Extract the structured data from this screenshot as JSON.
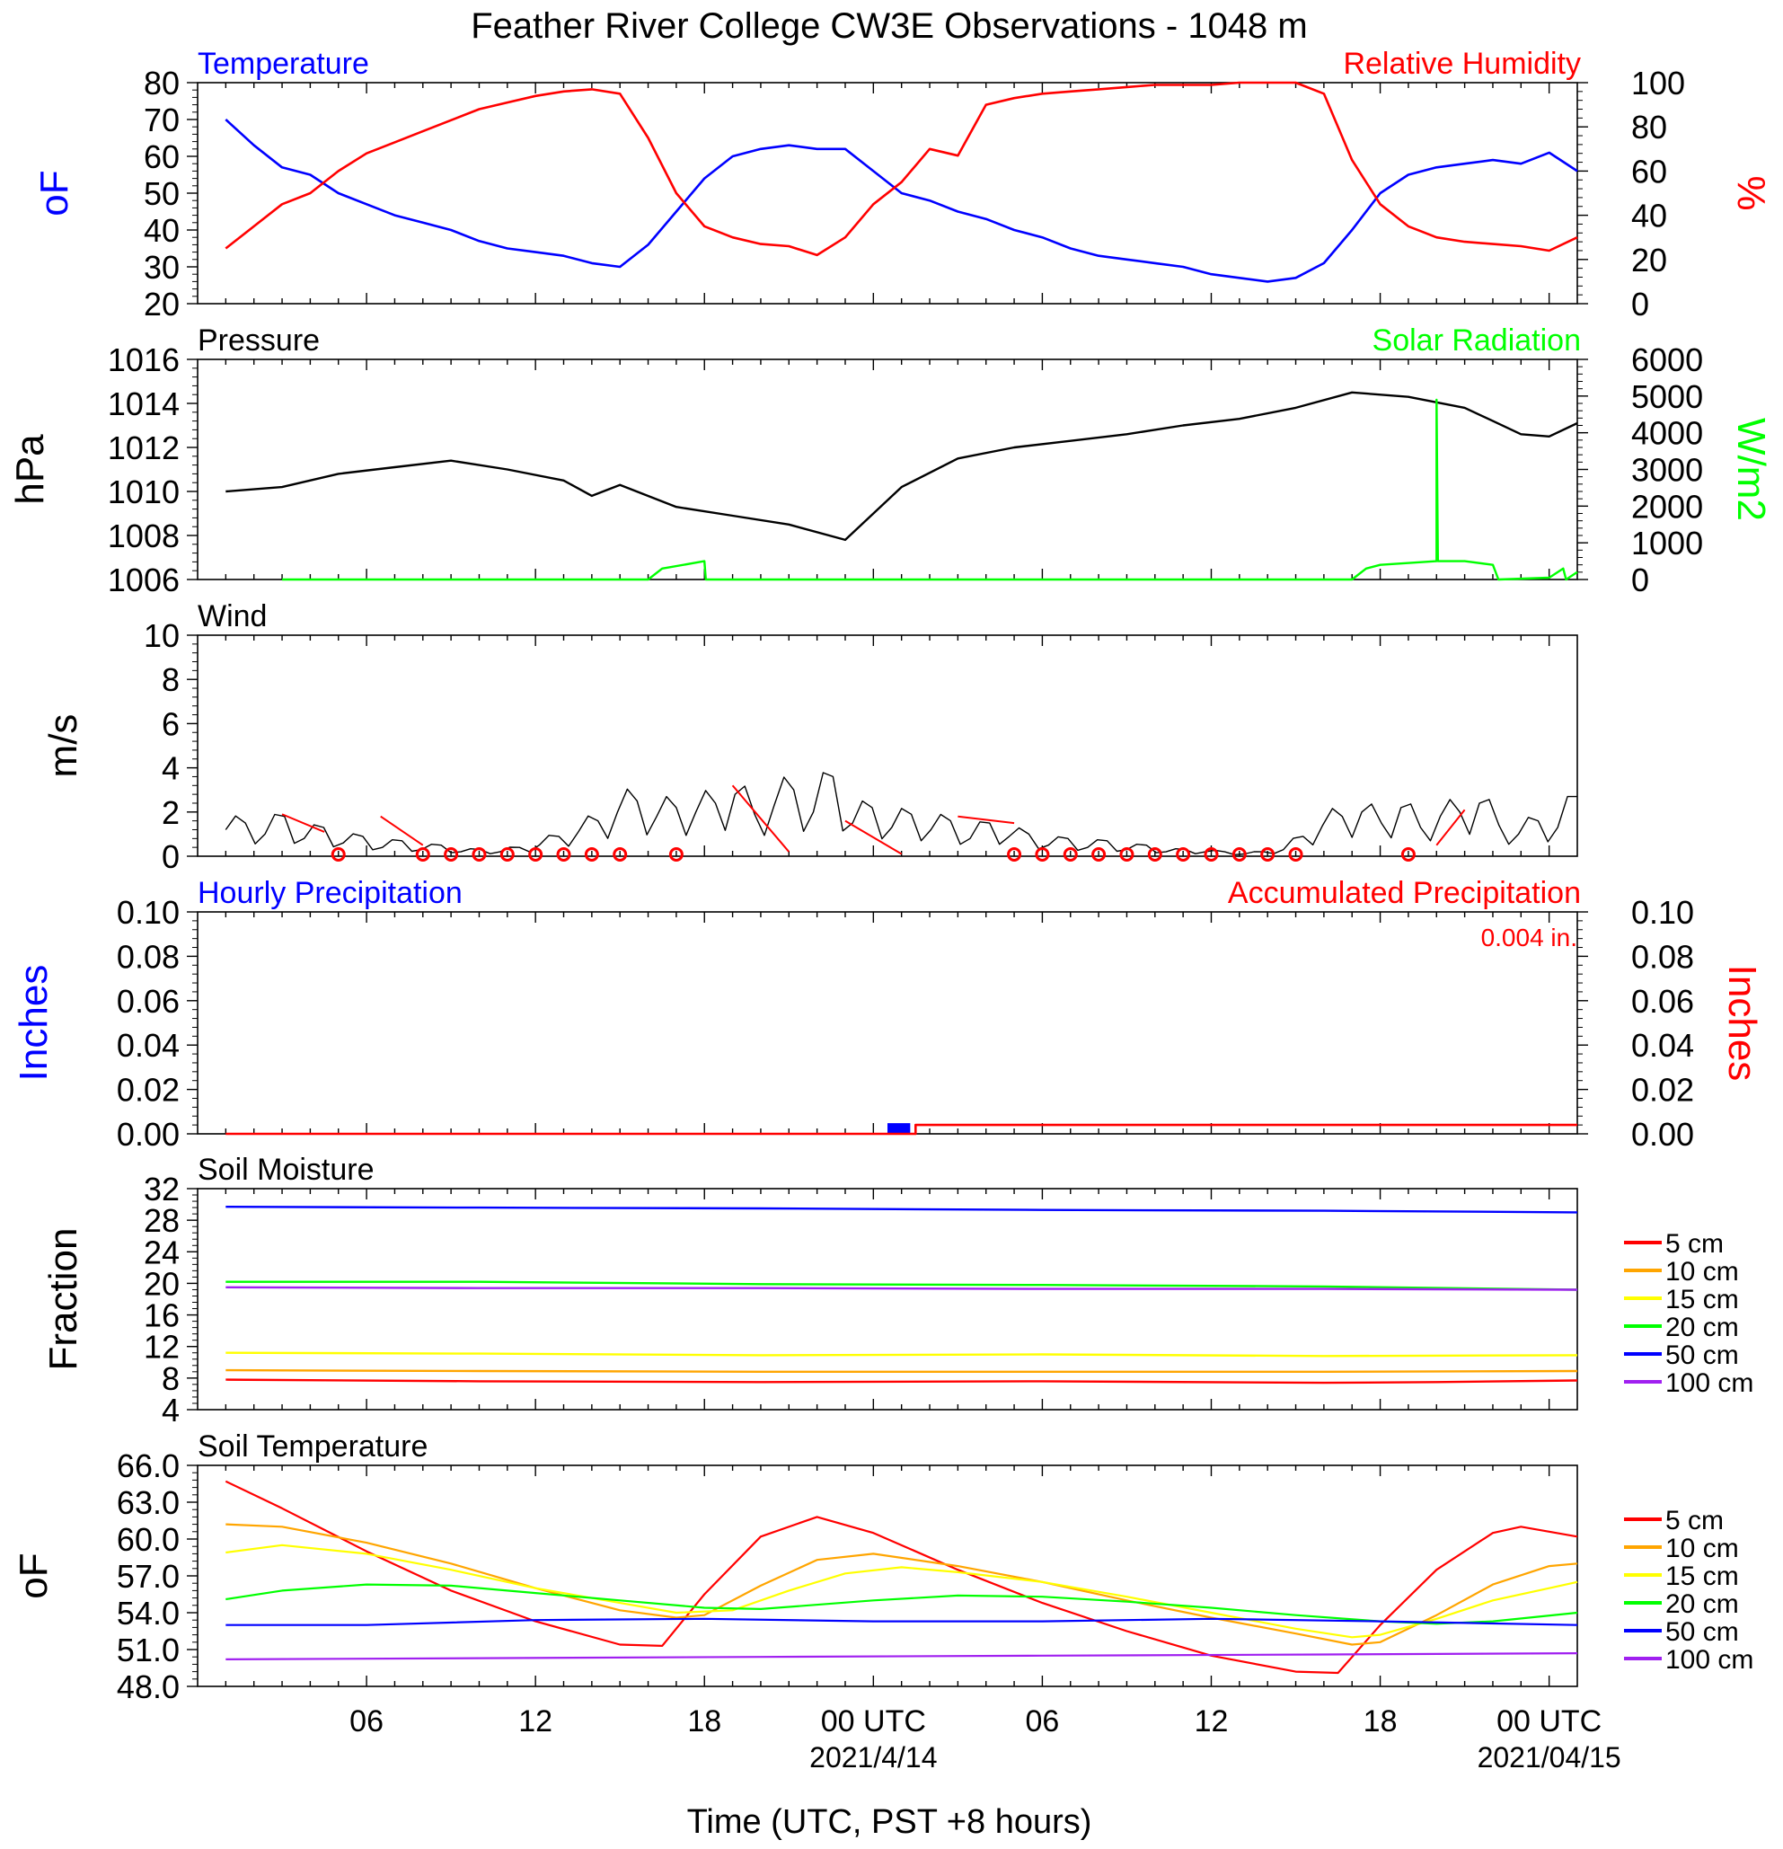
{
  "title": "Feather River College CW3E Observations - 1048 m",
  "xaxis": {
    "label": "Time (UTC, PST +8 hours)",
    "ticks": [
      {
        "hour": 6,
        "label": "06",
        "sub": ""
      },
      {
        "hour": 12,
        "label": "12",
        "sub": ""
      },
      {
        "hour": 18,
        "label": "18",
        "sub": ""
      },
      {
        "hour": 24,
        "label": "00 UTC",
        "sub": "2021/4/14"
      },
      {
        "hour": 30,
        "label": "06",
        "sub": ""
      },
      {
        "hour": 36,
        "label": "12",
        "sub": ""
      },
      {
        "hour": 42,
        "label": "18",
        "sub": ""
      },
      {
        "hour": 48,
        "label": "00 UTC",
        "sub": "2021/04/15"
      }
    ]
  },
  "colors": {
    "temperature": "#0000ff",
    "humidity": "#ff0000",
    "pressure": "#000000",
    "solar": "#00ff00",
    "wind": "#000000",
    "wind_barb": "#ff0000",
    "hourly_precip": "#0000ff",
    "accum_precip": "#ff0000"
  },
  "chart_data": [
    {
      "id": "temp_rh",
      "type": "line",
      "left_title": "Temperature",
      "right_title": "Relative Humidity",
      "left_ylabel": "oF",
      "right_ylabel": "%",
      "left_ylim": [
        20,
        80
      ],
      "right_ylim": [
        0,
        100
      ],
      "left_ticks": [
        "20",
        "30",
        "40",
        "50",
        "60",
        "70",
        "80"
      ],
      "right_ticks": [
        "0",
        "20",
        "40",
        "60",
        "80",
        "100"
      ],
      "x_hours": [
        1,
        2,
        3,
        4,
        5,
        6,
        7,
        8,
        9,
        10,
        11,
        12,
        13,
        14,
        15,
        16,
        17,
        18,
        19,
        20,
        21,
        22,
        23,
        24,
        25,
        26,
        27,
        28,
        29,
        30,
        31,
        32,
        33,
        34,
        35,
        36,
        37,
        38,
        39,
        40,
        41,
        42,
        43,
        44,
        45,
        46,
        47,
        48,
        49
      ],
      "series": [
        {
          "name": "Temperature",
          "axis": "left",
          "values": [
            70,
            63,
            57,
            55,
            50,
            47,
            44,
            42,
            40,
            37,
            35,
            34,
            33,
            31,
            30,
            36,
            45,
            54,
            60,
            62,
            63,
            62,
            62,
            56,
            50,
            48,
            45,
            43,
            40,
            38,
            35,
            33,
            32,
            31,
            30,
            28,
            27,
            26,
            27,
            31,
            40,
            50,
            55,
            57,
            58,
            59,
            58,
            61,
            56
          ]
        },
        {
          "name": "Relative Humidity",
          "axis": "right",
          "values": [
            25,
            35,
            45,
            50,
            60,
            68,
            73,
            78,
            83,
            88,
            91,
            94,
            96,
            97,
            95,
            75,
            50,
            35,
            30,
            27,
            26,
            22,
            30,
            45,
            55,
            70,
            67,
            90,
            93,
            95,
            96,
            97,
            98,
            99,
            99,
            99,
            100,
            100,
            100,
            95,
            65,
            45,
            35,
            30,
            28,
            27,
            26,
            24,
            30
          ]
        }
      ]
    },
    {
      "id": "pressure_solar",
      "type": "line",
      "left_title": "Pressure",
      "right_title": "Solar Radiation",
      "left_ylabel": "hPa",
      "right_ylabel": "W/m2",
      "left_ylim": [
        1006,
        1016
      ],
      "right_ylim": [
        0,
        6000
      ],
      "left_ticks": [
        "1006",
        "1008",
        "1010",
        "1012",
        "1014",
        "1016"
      ],
      "right_ticks": [
        "0",
        "1000",
        "2000",
        "3000",
        "4000",
        "5000",
        "6000"
      ],
      "series": [
        {
          "name": "Pressure",
          "axis": "left",
          "x": [
            1,
            3,
            5,
            7,
            9,
            11,
            13,
            14,
            15,
            17,
            19,
            21,
            23,
            25,
            27,
            29,
            31,
            33,
            35,
            37,
            39,
            41,
            43,
            45,
            46,
            47,
            48,
            49
          ],
          "values": [
            1010.0,
            1010.2,
            1010.8,
            1011.1,
            1011.4,
            1011.0,
            1010.5,
            1009.8,
            1010.3,
            1009.3,
            1008.9,
            1008.5,
            1007.8,
            1010.2,
            1011.5,
            1012.0,
            1012.3,
            1012.6,
            1013.0,
            1013.3,
            1013.8,
            1014.5,
            1014.3,
            1013.8,
            1013.2,
            1012.6,
            1012.5,
            1013.1
          ]
        },
        {
          "name": "Solar Radiation",
          "axis": "right",
          "x": [
            3,
            16,
            16.5,
            18,
            18.05,
            23,
            23.1,
            40,
            40.1,
            41,
            41.5,
            42,
            44,
            44,
            44.05,
            45,
            46,
            46.2,
            48,
            48.5,
            48.6,
            49
          ],
          "values": [
            0,
            0,
            300,
            500,
            0,
            0,
            0,
            0,
            0,
            0,
            300,
            400,
            500,
            4900,
            500,
            500,
            400,
            0,
            50,
            300,
            0,
            200
          ]
        }
      ]
    },
    {
      "id": "wind",
      "type": "line",
      "left_title": "Wind",
      "left_ylabel": "m/s",
      "left_ylim": [
        0,
        10
      ],
      "left_ticks": [
        "0",
        "2",
        "4",
        "6",
        "8",
        "10"
      ],
      "series": [
        {
          "name": "Wind",
          "x_start": 1,
          "x_end": 49,
          "values": [
            1.2,
            1.5,
            1.0,
            1.8,
            0.8,
            1.3,
            0.6,
            0.9,
            0.4,
            0.7,
            0.3,
            0.5,
            0.2,
            0.3,
            0.2,
            0.4,
            0.5,
            0.9,
            1.1,
            1.6,
            2.0,
            2.5,
            1.8,
            2.2,
            2.0,
            2.4,
            2.8,
            1.9,
            2.3,
            3.0,
            2.0,
            3.6,
            1.5,
            2.2,
            1.3,
            1.9,
            1.2,
            1.6,
            0.8,
            1.5,
            0.9,
            1.0,
            0.5,
            0.8,
            0.4,
            0.7,
            0.3,
            0.5,
            0.2,
            0.3,
            0.2,
            0.2,
            0.1,
            0.2,
            0.3,
            0.9,
            1.4,
            1.8,
            2.0,
            1.5,
            2.2,
            1.3,
            1.8,
            2.0,
            2.4,
            1.4,
            1.0,
            1.6,
            1.3,
            2.7
          ]
        }
      ],
      "calm_hours": [
        5,
        8,
        9,
        10,
        11,
        12,
        13,
        14,
        15,
        17,
        29,
        30,
        31,
        32,
        33,
        34,
        35,
        36,
        37,
        38,
        39,
        43
      ]
    },
    {
      "id": "precip",
      "type": "bar",
      "left_title": "Hourly Precipitation",
      "right_title": "Accumulated Precipitation",
      "total_label": "0.004 in.",
      "left_ylabel": "Inches",
      "right_ylabel": "Inches",
      "left_ylim": [
        0,
        0.1
      ],
      "right_ylim": [
        0,
        0.1
      ],
      "left_ticks": [
        "0.00",
        "0.02",
        "0.04",
        "0.06",
        "0.08",
        "0.10"
      ],
      "right_ticks": [
        "0.00",
        "0.02",
        "0.04",
        "0.06",
        "0.08",
        "0.10"
      ],
      "hourly": [
        {
          "hour": 25,
          "value": 0.004
        }
      ],
      "accumulated": {
        "x": [
          1,
          25.5,
          25.5,
          49
        ],
        "values": [
          0,
          0,
          0.004,
          0.004
        ]
      }
    },
    {
      "id": "soil_moisture",
      "type": "line",
      "left_title": "Soil Moisture",
      "left_ylabel": "Fraction",
      "left_ylim": [
        4,
        32
      ],
      "left_ticks": [
        "4",
        "8",
        "12",
        "16",
        "20",
        "24",
        "28",
        "32"
      ],
      "series": [
        {
          "name": "5 cm",
          "color": "#ff0000",
          "x": [
            1,
            10,
            20,
            30,
            40,
            44,
            49
          ],
          "values": [
            7.8,
            7.6,
            7.5,
            7.6,
            7.4,
            7.5,
            7.7
          ]
        },
        {
          "name": "10 cm",
          "color": "#ffa500",
          "x": [
            1,
            10,
            20,
            30,
            40,
            49
          ],
          "values": [
            9.0,
            8.9,
            8.8,
            8.8,
            8.8,
            8.9
          ]
        },
        {
          "name": "15 cm",
          "color": "#ffff00",
          "x": [
            1,
            10,
            20,
            30,
            40,
            49
          ],
          "values": [
            11.2,
            11.1,
            10.9,
            11.0,
            10.8,
            10.9
          ]
        },
        {
          "name": "20 cm",
          "color": "#00ff00",
          "x": [
            1,
            10,
            20,
            30,
            40,
            49
          ],
          "values": [
            20.2,
            20.2,
            19.9,
            19.8,
            19.6,
            19.2
          ]
        },
        {
          "name": "50 cm",
          "color": "#0000ff",
          "x": [
            1,
            10,
            20,
            30,
            40,
            49
          ],
          "values": [
            29.7,
            29.6,
            29.5,
            29.3,
            29.2,
            29.0
          ]
        },
        {
          "name": "100 cm",
          "color": "#a020f0",
          "x": [
            1,
            10,
            20,
            30,
            40,
            49
          ],
          "values": [
            19.5,
            19.4,
            19.4,
            19.3,
            19.3,
            19.2
          ]
        }
      ]
    },
    {
      "id": "soil_temp",
      "type": "line",
      "left_title": "Soil Temperature",
      "left_ylabel": "oF",
      "left_ylim": [
        48,
        66
      ],
      "left_ticks": [
        "48.0",
        "51.0",
        "54.0",
        "57.0",
        "60.0",
        "63.0",
        "66.0"
      ],
      "series": [
        {
          "name": "5 cm",
          "color": "#ff0000",
          "x": [
            1,
            3,
            6,
            9,
            12,
            15,
            16.5,
            18,
            20,
            22,
            24,
            27,
            30,
            33,
            36,
            39,
            40.5,
            42,
            44,
            46,
            47,
            49
          ],
          "values": [
            64.7,
            62.5,
            59.0,
            55.8,
            53.3,
            51.4,
            51.3,
            55.5,
            60.2,
            61.8,
            60.5,
            57.5,
            54.8,
            52.5,
            50.5,
            49.2,
            49.1,
            53.0,
            57.5,
            60.5,
            61.0,
            60.2
          ]
        },
        {
          "name": "10 cm",
          "color": "#ffa500",
          "x": [
            1,
            3,
            6,
            9,
            12,
            15,
            17,
            18,
            20,
            22,
            24,
            27,
            30,
            33,
            36,
            39,
            41,
            42,
            44,
            46,
            48,
            49
          ],
          "values": [
            61.2,
            61.0,
            59.7,
            58.0,
            56.0,
            54.2,
            53.6,
            53.8,
            56.2,
            58.3,
            58.8,
            57.8,
            56.5,
            55.0,
            53.6,
            52.3,
            51.4,
            51.6,
            53.8,
            56.3,
            57.8,
            58.0
          ]
        },
        {
          "name": "15 cm",
          "color": "#ffff00",
          "x": [
            1,
            3,
            6,
            9,
            12,
            15,
            17,
            19,
            21,
            23,
            25,
            27,
            30,
            33,
            36,
            39,
            41,
            42,
            44,
            46,
            48,
            49
          ],
          "values": [
            58.9,
            59.5,
            58.8,
            57.5,
            56.0,
            54.8,
            54.0,
            54.2,
            55.8,
            57.2,
            57.7,
            57.3,
            56.5,
            55.3,
            54.0,
            52.7,
            52.0,
            52.2,
            53.5,
            55.0,
            56.0,
            56.5
          ]
        },
        {
          "name": "20 cm",
          "color": "#00ff00",
          "x": [
            1,
            3,
            6,
            9,
            12,
            15,
            18,
            20,
            24,
            27,
            30,
            33,
            36,
            39,
            42,
            44,
            46,
            49
          ],
          "values": [
            55.1,
            55.8,
            56.3,
            56.2,
            55.6,
            55.0,
            54.4,
            54.3,
            55.0,
            55.4,
            55.3,
            54.9,
            54.4,
            53.8,
            53.3,
            53.1,
            53.3,
            54.0
          ]
        },
        {
          "name": "50 cm",
          "color": "#0000ff",
          "x": [
            1,
            6,
            12,
            18,
            24,
            30,
            36,
            42,
            49
          ],
          "values": [
            53.0,
            53.0,
            53.4,
            53.5,
            53.3,
            53.3,
            53.5,
            53.3,
            53.0
          ]
        },
        {
          "name": "100 cm",
          "color": "#a020f0",
          "x": [
            1,
            10,
            20,
            30,
            40,
            49
          ],
          "values": [
            50.2,
            50.3,
            50.4,
            50.5,
            50.6,
            50.7
          ]
        }
      ]
    }
  ]
}
